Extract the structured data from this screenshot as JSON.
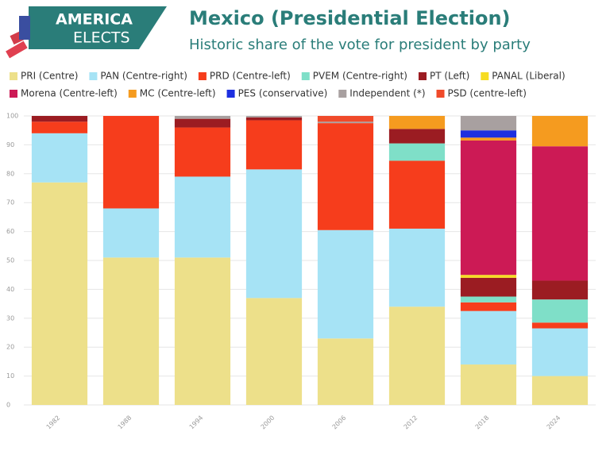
{
  "header": {
    "logo_top": "AMERICA",
    "logo_bottom": "ELECTS"
  },
  "chart_data": {
    "type": "stacked_bar",
    "title": "Mexico (Presidential Election)",
    "subtitle": "Historic share of the vote for president by party",
    "categories": [
      "1982",
      "1988",
      "1994",
      "2000",
      "2006",
      "2012",
      "2018",
      "2024"
    ],
    "ylim": [
      0,
      100
    ],
    "yticks": [
      0,
      10,
      20,
      30,
      40,
      50,
      60,
      70,
      80,
      90,
      100
    ],
    "grid": true,
    "series": [
      {
        "name": "PRI (Centre)",
        "color": "#ede08a",
        "values": [
          77,
          51,
          51,
          37,
          23,
          34,
          14,
          10
        ]
      },
      {
        "name": "PAN (Centre-right)",
        "color": "#a6e3f5",
        "values": [
          17,
          17,
          28,
          44.5,
          37.5,
          27,
          18.5,
          16.5
        ]
      },
      {
        "name": "PRD (Centre-left)",
        "color": "#f63d1c",
        "values": [
          4,
          32,
          17,
          17,
          37,
          23.5,
          3,
          2
        ]
      },
      {
        "name": "PVEM (Centre-right)",
        "color": "#7fdfc8",
        "values": [
          null,
          null,
          null,
          null,
          null,
          6,
          2,
          8
        ]
      },
      {
        "name": "PT (Left)",
        "color": "#9b1c22",
        "values": [
          2,
          null,
          3,
          1,
          null,
          5,
          6.5,
          6.5
        ]
      },
      {
        "name": "PANAL (Liberal)",
        "color": "#f6dc22",
        "values": [
          null,
          null,
          null,
          null,
          null,
          null,
          1,
          null
        ]
      },
      {
        "name": "Morena (Centre-left)",
        "color": "#cc1a55",
        "values": [
          null,
          null,
          null,
          null,
          null,
          null,
          46.5,
          46.5
        ]
      },
      {
        "name": "MC (Centre-left)",
        "color": "#f59b1f",
        "values": [
          null,
          null,
          null,
          null,
          null,
          4.5,
          1,
          10.5
        ]
      },
      {
        "name": "PES (conservative)",
        "color": "#1d2fe0",
        "values": [
          null,
          null,
          null,
          null,
          null,
          null,
          2.5,
          null
        ]
      },
      {
        "name": "Independent (*)",
        "color": "#a8a0a0",
        "values": [
          null,
          null,
          1,
          0.5,
          0.5,
          null,
          5,
          null
        ]
      },
      {
        "name": "PSD (centre-left)",
        "color": "#f04a2a",
        "values": [
          null,
          null,
          null,
          null,
          2,
          null,
          null,
          null
        ]
      }
    ]
  }
}
